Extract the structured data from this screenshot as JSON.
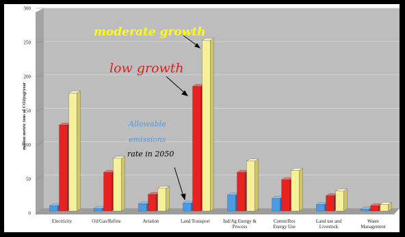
{
  "chart_data": {
    "type": "bar",
    "ylabel": "million metric tons of CO2(eq)/year",
    "ylim": [
      0,
      300
    ],
    "yticks": [
      "0",
      "50",
      "100",
      "150",
      "200",
      "250",
      "300"
    ],
    "grid": true,
    "categories": [
      [
        "Electricity"
      ],
      [
        "Oil/Gas/Refine"
      ],
      [
        "Aviation"
      ],
      [
        "Land Transport"
      ],
      [
        "Ind/Ag Energy &",
        "Process"
      ],
      [
        "Comm/Res",
        "Energy Use"
      ],
      [
        "Land use and",
        "Livestock"
      ],
      [
        "Waste",
        "Management"
      ]
    ],
    "series": [
      {
        "values": [
          8,
          4,
          11,
          12,
          24,
          19,
          10,
          3
        ]
      },
      {
        "values": [
          129,
          58,
          25,
          187,
          58,
          47,
          23,
          8
        ]
      },
      {
        "values": [
          177,
          79,
          34,
          256,
          75,
          61,
          30,
          10
        ]
      }
    ],
    "annotations": {
      "moderate": "moderate growth",
      "low": "low growth",
      "allowable": [
        "Allowable",
        "emissions",
        "rate in 2050"
      ]
    }
  },
  "colors": {
    "series": [
      "#4a9be6",
      "#e82121",
      "#f7f09a"
    ],
    "series_side": [
      "#2f6fae",
      "#a81818",
      "#cfc66a"
    ],
    "series_top": [
      "#8ac2f2",
      "#f26b6b",
      "#fbf7c8"
    ],
    "wall": "#bdbdbd",
    "floor": "#a8a8a8",
    "moderate": "#ffff00",
    "low": "#e02020",
    "allowable_blue": "#4a9be6",
    "allowable_black": "#000000"
  }
}
